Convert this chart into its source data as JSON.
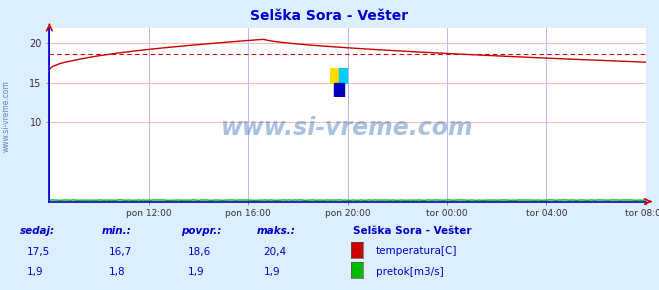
{
  "title": "Selška Sora - Vešter",
  "title_color": "#0000cc",
  "title_fontsize": 10,
  "bg_color": "#ddeeff",
  "plot_bg_color": "#ffffff",
  "grid_color_v": "#aaaaff",
  "grid_color_h": "#ffaaaa",
  "watermark_text": "www.si-vreme.com",
  "watermark_color": "#4477bb",
  "watermark_alpha": 0.45,
  "watermark_fontsize": 17,
  "left_label": "www.si-vreme.com",
  "left_label_color": "#4477bb",
  "x_tick_labels": [
    "pon 12:00",
    "pon 16:00",
    "pon 20:00",
    "tor 00:00",
    "tor 04:00",
    "tor 08:00"
  ],
  "x_tick_positions": [
    0.1667,
    0.3333,
    0.5,
    0.6667,
    0.8333,
    1.0
  ],
  "ylim": [
    0,
    22
  ],
  "yticks": [
    10,
    15,
    20
  ],
  "temp_color": "#cc0000",
  "flow_color": "#00bb00",
  "axis_color": "#0000cc",
  "avg_line_y": 18.6,
  "avg_line_color": "#cc0000",
  "n_points": 288,
  "footer_text_color": "#0000cc",
  "legend_title": "Selška Sora - Vešter",
  "footer_labels": [
    "sedaj:",
    "min.:",
    "povpr.:",
    "maks.:"
  ],
  "footer_temp_values": [
    "17,5",
    "16,7",
    "18,6",
    "20,4"
  ],
  "footer_flow_values": [
    "1,9",
    "1,8",
    "1,9",
    "1,9"
  ],
  "legend_items": [
    "temperatura[C]",
    "pretok[m3/s]"
  ],
  "legend_item_colors": [
    "#cc0000",
    "#00bb00"
  ],
  "icon_colors": [
    "#ffdd00",
    "#00aaff",
    "#0000cc"
  ]
}
